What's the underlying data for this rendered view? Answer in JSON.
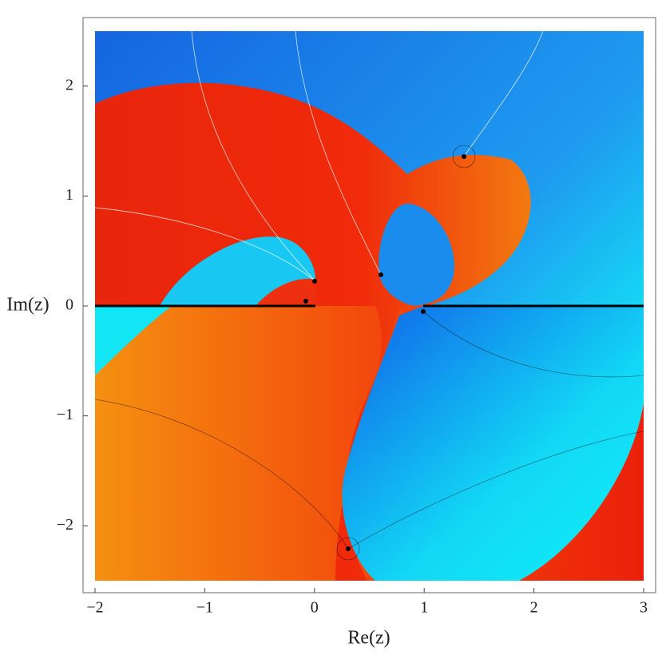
{
  "chart_data": {
    "type": "complex-plot",
    "xlabel": "Re(z)",
    "ylabel": "Im(z)",
    "xlim": [
      -2,
      3
    ],
    "ylim": [
      -2.5,
      2.5
    ],
    "xticks": [
      {
        "value": -2,
        "label": "−2"
      },
      {
        "value": -1,
        "label": "−1"
      },
      0,
      1,
      2,
      3
    ],
    "yticks": [
      {
        "value": -2,
        "label": "−2"
      },
      {
        "value": -1,
        "label": "−1"
      },
      0,
      1,
      2
    ]
  }
}
